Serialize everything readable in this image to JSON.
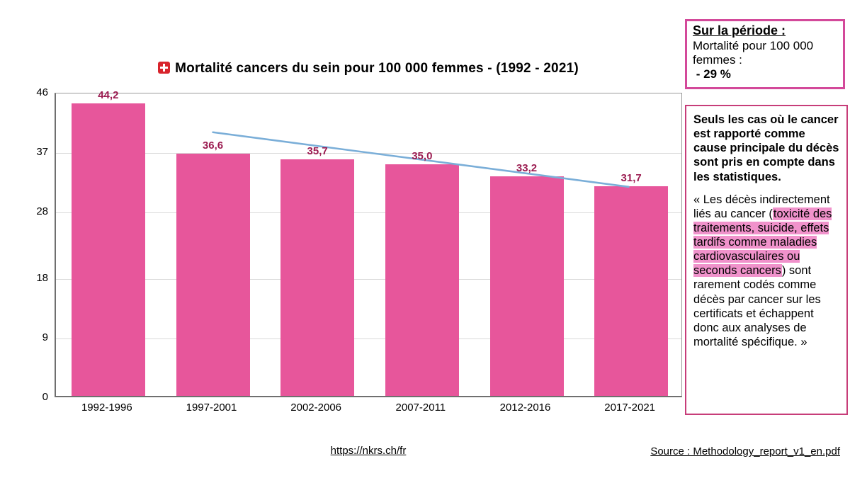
{
  "title": {
    "text": "Mortalité cancers du sein pour 100 000 femmes - (1992 - 2021)",
    "flag_icon": "swiss-flag"
  },
  "chart_data": {
    "type": "bar",
    "title": "Mortalité cancers du sein pour 100 000 femmes - (1992 - 2021)",
    "categories": [
      "1992-1996",
      "1997-2001",
      "2002-2006",
      "2007-2011",
      "2012-2016",
      "2017-2021"
    ],
    "values": [
      44.2,
      36.6,
      35.7,
      35.0,
      33.2,
      31.7
    ],
    "value_labels": [
      "44,2",
      "36,6",
      "35,7",
      "35,0",
      "33,2",
      "31,7"
    ],
    "y_ticks": [
      0,
      9,
      18,
      28,
      37,
      46
    ],
    "ylim": [
      0,
      46
    ],
    "xlabel": "",
    "ylabel": "",
    "grid": true,
    "legend_position": "none",
    "bar_color": "#e7569b",
    "value_label_color": "#9b1b50",
    "trendline": {
      "color": "#7aaed8",
      "x1_frac": 0.25,
      "y1_value": 40.1,
      "x2_frac": 0.917,
      "y2_value": 31.8
    }
  },
  "summary_box": {
    "heading": "Sur la période :",
    "body": "Mortalité pour 100 000 femmes :",
    "value": " - 29 %"
  },
  "note_box": {
    "lead": "Seuls les cas où le cancer est rapporté comme cause principale du décès sont pris en compte dans les statistiques.",
    "quote_segments": [
      {
        "text": "« Les décès indirectement liés au cancer (",
        "highlight": false
      },
      {
        "text": "toxicité des traitements, suicide, effets tardifs comme maladies cardiovasculaires ou seconds cancers",
        "highlight": true
      },
      {
        "text": ") sont rarement codés comme décès par cancer sur les certificats et échappent donc aux analyses de mortalité spécifique. »",
        "highlight": false
      }
    ],
    "highlight_color": "#f092cb"
  },
  "footer": {
    "site_link": "https://nkrs.ch/fr",
    "source_link": "Source : Methodology_report_v1_en.pdf"
  },
  "colors": {
    "summary_border": "#d3499a",
    "note_border": "#c73d79",
    "gridline": "#d9d9d9"
  }
}
